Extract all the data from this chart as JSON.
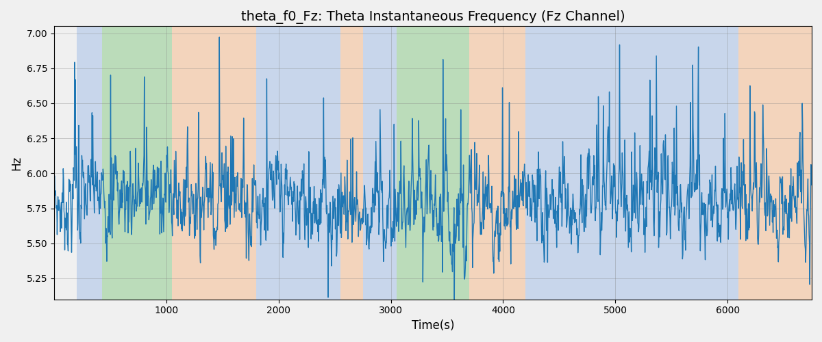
{
  "title": "theta_f0_Fz: Theta Instantaneous Frequency (Fz Channel)",
  "xlabel": "Time(s)",
  "ylabel": "Hz",
  "ylim": [
    5.1,
    7.05
  ],
  "xlim": [
    0,
    6750
  ],
  "line_color": "#1f77b4",
  "line_width": 1.0,
  "bg_color": "#f0f0f0",
  "plot_bg_color": "#f0f0f0",
  "shade_bands": [
    {
      "xmin": 200,
      "xmax": 430,
      "color": "#aec6e8",
      "alpha": 0.6
    },
    {
      "xmin": 430,
      "xmax": 1050,
      "color": "#98d097",
      "alpha": 0.6
    },
    {
      "xmin": 1050,
      "xmax": 1800,
      "color": "#f5c6a0",
      "alpha": 0.65
    },
    {
      "xmin": 1800,
      "xmax": 2550,
      "color": "#aec6e8",
      "alpha": 0.6
    },
    {
      "xmin": 2550,
      "xmax": 2750,
      "color": "#f5c6a0",
      "alpha": 0.65
    },
    {
      "xmin": 2750,
      "xmax": 3050,
      "color": "#aec6e8",
      "alpha": 0.6
    },
    {
      "xmin": 3050,
      "xmax": 3700,
      "color": "#98d097",
      "alpha": 0.6
    },
    {
      "xmin": 3700,
      "xmax": 4200,
      "color": "#f5c6a0",
      "alpha": 0.65
    },
    {
      "xmin": 4200,
      "xmax": 6100,
      "color": "#aec6e8",
      "alpha": 0.6
    },
    {
      "xmin": 6100,
      "xmax": 6750,
      "color": "#f5c6a0",
      "alpha": 0.65
    }
  ],
  "yticks": [
    5.25,
    5.5,
    5.75,
    6.0,
    6.25,
    6.5,
    6.75,
    7.0
  ],
  "xticks": [
    1000,
    2000,
    3000,
    4000,
    5000,
    6000
  ],
  "title_fontsize": 14,
  "seed": 7
}
